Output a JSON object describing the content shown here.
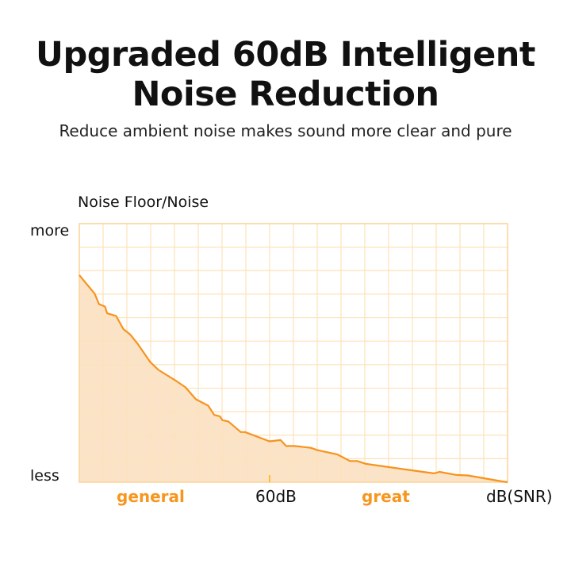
{
  "header": {
    "title_line1": "Upgraded 60dB Intelligent",
    "title_line2": "Noise Reduction",
    "subtitle": "Reduce ambient noise makes sound more clear and pure"
  },
  "chart_data": {
    "type": "area",
    "ylabel": "Noise Floor/Noise",
    "y_ticks": {
      "top": "more",
      "bottom": "less"
    },
    "x_labels": {
      "general": "general",
      "mark": "60dB",
      "great": "great",
      "unit": "dB(SNR)"
    },
    "xlim": [
      0,
      100
    ],
    "ylim": [
      0,
      100
    ],
    "grid": true,
    "colors": {
      "line": "#f7931e",
      "fill": "#fbe3c8",
      "grid": "#fde2b8",
      "highlight_label": "#f7961e"
    },
    "series": [
      {
        "x": [
          0,
          3.6,
          4.6,
          6.0,
          6.5,
          8.6,
          10.3,
          11.9,
          13.6,
          16.6,
          18.5,
          22.5,
          24.8,
          27.2,
          30.1,
          31.5,
          32.8,
          33.4,
          34.8,
          37.7,
          38.7,
          44.4,
          47.0,
          48.3,
          50.3,
          54.0,
          55.6,
          60.3,
          63.2,
          64.9,
          66.9,
          76.2,
          82.8,
          84.1,
          88.1,
          90.7,
          98.7,
          100
        ],
        "y": [
          80.1,
          72.9,
          68.9,
          67.9,
          65.3,
          64.3,
          59.2,
          57.1,
          53.6,
          46.4,
          43.4,
          39.3,
          36.7,
          32.1,
          29.6,
          26.0,
          25.5,
          24.0,
          23.5,
          19.4,
          19.4,
          15.8,
          16.3,
          14.0,
          14.0,
          13.3,
          12.4,
          10.7,
          8.2,
          8.2,
          7.1,
          4.9,
          3.4,
          4.0,
          2.8,
          2.6,
          0.3,
          0
        ]
      }
    ]
  }
}
